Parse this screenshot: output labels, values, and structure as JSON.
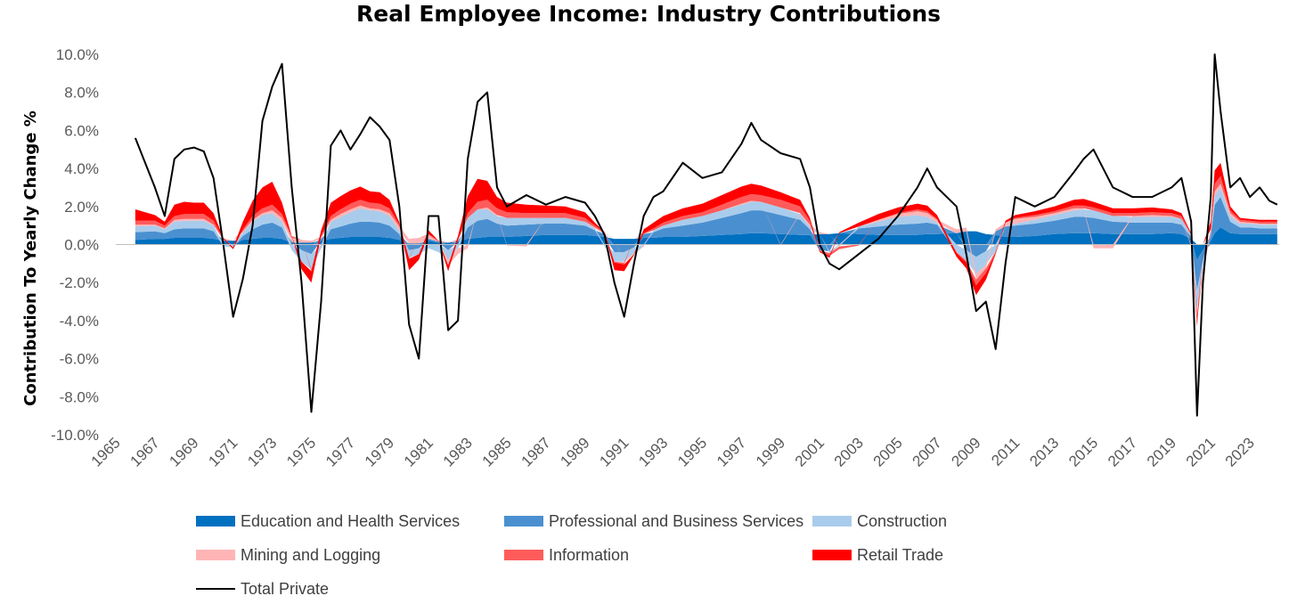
{
  "chart_data": {
    "type": "area",
    "title": "Real Employee Income: Industry Contributions",
    "xlabel": "",
    "ylabel": "Contribution To Yearly Change %",
    "xlim": [
      1965,
      2024.5
    ],
    "ylim": [
      -10,
      10
    ],
    "x_tick_labels": [
      "1965",
      "1967",
      "1969",
      "1971",
      "1973",
      "1975",
      "1977",
      "1979",
      "1981",
      "1983",
      "1985",
      "1987",
      "1989",
      "1991",
      "1993",
      "1995",
      "1997",
      "1999",
      "2001",
      "2003",
      "2005",
      "2007",
      "2009",
      "2011",
      "2013",
      "2015",
      "2017",
      "2019",
      "2021",
      "2023"
    ],
    "y_tick_labels": [
      "10.0%",
      "8.0%",
      "6.0%",
      "4.0%",
      "2.0%",
      "0.0%",
      "-2.0%",
      "-4.0%",
      "-6.0%",
      "-8.0%",
      "-10.0%"
    ],
    "legend_position": "bottom",
    "grid": false,
    "x": [
      1966.0,
      1967.0,
      1967.5,
      1968.0,
      1968.5,
      1969.0,
      1969.5,
      1970.0,
      1970.5,
      1971.0,
      1971.5,
      1972.0,
      1972.5,
      1973.0,
      1973.5,
      1974.0,
      1974.5,
      1975.0,
      1975.5,
      1976.0,
      1976.5,
      1977.0,
      1977.5,
      1978.0,
      1978.5,
      1979.0,
      1979.5,
      1980.0,
      1980.5,
      1981.0,
      1981.5,
      1982.0,
      1982.5,
      1983.0,
      1983.5,
      1984.0,
      1984.5,
      1985.0,
      1986.0,
      1987.0,
      1988.0,
      1989.0,
      1989.5,
      1990.0,
      1990.5,
      1991.0,
      1991.5,
      1992.0,
      1992.5,
      1993.0,
      1994.0,
      1995.0,
      1996.0,
      1997.0,
      1997.5,
      1998.0,
      1999.0,
      2000.0,
      2000.5,
      2001.0,
      2001.5,
      2002.0,
      2003.0,
      2004.0,
      2005.0,
      2006.0,
      2006.5,
      2007.0,
      2008.0,
      2008.5,
      2009.0,
      2009.5,
      2010.0,
      2010.5,
      2011.0,
      2012.0,
      2013.0,
      2014.0,
      2014.5,
      2015.0,
      2016.0,
      2017.0,
      2018.0,
      2019.0,
      2019.5,
      2020.0,
      2020.3,
      2020.6,
      2021.0,
      2021.2,
      2021.5,
      2022.0,
      2022.5,
      2023.0,
      2023.5,
      2024.0,
      2024.4
    ],
    "series": [
      {
        "name": "Education and Health Services",
        "color": "#0070C0",
        "values": [
          0.25,
          0.3,
          0.3,
          0.35,
          0.35,
          0.35,
          0.35,
          0.3,
          0.2,
          0.2,
          0.25,
          0.3,
          0.35,
          0.35,
          0.3,
          0.1,
          0.1,
          0.1,
          0.2,
          0.3,
          0.35,
          0.4,
          0.4,
          0.4,
          0.4,
          0.35,
          0.25,
          0.05,
          0.05,
          0.2,
          0.1,
          0.1,
          0.15,
          0.3,
          0.35,
          0.4,
          0.4,
          0.4,
          0.45,
          0.5,
          0.5,
          0.5,
          0.45,
          0.4,
          0.3,
          0.3,
          0.3,
          0.35,
          0.35,
          0.4,
          0.4,
          0.45,
          0.5,
          0.55,
          0.6,
          0.6,
          0.55,
          0.5,
          0.5,
          0.55,
          0.55,
          0.6,
          0.55,
          0.5,
          0.5,
          0.5,
          0.55,
          0.55,
          0.6,
          0.7,
          0.7,
          0.55,
          0.5,
          0.4,
          0.4,
          0.45,
          0.55,
          0.6,
          0.6,
          0.6,
          0.55,
          0.55,
          0.55,
          0.6,
          0.55,
          0.3,
          -0.8,
          -0.3,
          0.2,
          0.6,
          0.9,
          0.6,
          0.55,
          0.55,
          0.55,
          0.55,
          0.55
        ]
      },
      {
        "name": "Professional and Business Services",
        "color": "#4A90D0",
        "values": [
          0.4,
          0.4,
          0.3,
          0.45,
          0.5,
          0.5,
          0.5,
          0.4,
          0.05,
          -0.05,
          0.2,
          0.5,
          0.7,
          0.8,
          0.6,
          0.05,
          -0.3,
          -0.5,
          0.1,
          0.5,
          0.6,
          0.7,
          0.8,
          0.8,
          0.75,
          0.65,
          0.3,
          -0.3,
          -0.2,
          0.1,
          0.05,
          -0.3,
          0.05,
          0.6,
          0.9,
          0.95,
          0.7,
          0.6,
          0.6,
          0.6,
          0.6,
          0.5,
          0.3,
          0.15,
          -0.4,
          -0.4,
          -0.15,
          0.2,
          0.3,
          0.45,
          0.6,
          0.7,
          0.9,
          1.1,
          1.2,
          1.2,
          1.0,
          0.8,
          0.3,
          -0.3,
          -0.35,
          0.0,
          0.3,
          0.45,
          0.55,
          0.6,
          0.6,
          0.5,
          0.0,
          -0.3,
          -0.65,
          -0.35,
          0.2,
          0.55,
          0.6,
          0.65,
          0.7,
          0.85,
          0.85,
          0.8,
          0.65,
          0.6,
          0.6,
          0.55,
          0.5,
          0.1,
          -1.6,
          -0.5,
          0.3,
          1.5,
          1.6,
          0.6,
          0.35,
          0.35,
          0.3,
          0.3,
          0.3
        ]
      },
      {
        "name": "Construction",
        "color": "#A9CCEC",
        "values": [
          0.3,
          0.3,
          0.2,
          0.4,
          0.4,
          0.4,
          0.4,
          0.3,
          -0.1,
          -0.1,
          0.2,
          0.4,
          0.5,
          0.5,
          0.3,
          -0.3,
          -0.6,
          -0.8,
          -0.2,
          0.4,
          0.5,
          0.6,
          0.7,
          0.6,
          0.6,
          0.5,
          0.2,
          -0.4,
          -0.3,
          -0.2,
          -0.4,
          -0.5,
          -0.2,
          0.5,
          0.6,
          0.5,
          0.4,
          0.4,
          0.35,
          0.3,
          0.3,
          0.2,
          0.1,
          -0.1,
          -0.5,
          -0.5,
          -0.3,
          -0.05,
          0.1,
          0.15,
          0.3,
          0.35,
          0.4,
          0.45,
          0.45,
          0.45,
          0.4,
          0.3,
          0.15,
          0.0,
          -0.1,
          -0.05,
          0.1,
          0.25,
          0.4,
          0.45,
          0.3,
          0.1,
          -0.4,
          -0.55,
          -0.9,
          -0.7,
          -0.35,
          0.0,
          0.1,
          0.2,
          0.3,
          0.35,
          0.4,
          0.4,
          0.3,
          0.3,
          0.3,
          0.3,
          0.3,
          0.1,
          -1.0,
          -0.4,
          0.1,
          0.5,
          0.5,
          0.3,
          0.2,
          0.2,
          0.2,
          0.2,
          0.2
        ]
      },
      {
        "name": "Mining and Logging",
        "color": "#FFB5B5",
        "values": [
          0.1,
          0.05,
          0.05,
          0.1,
          0.1,
          0.1,
          0.1,
          0.05,
          0.0,
          0.0,
          0.05,
          0.1,
          0.1,
          0.15,
          0.2,
          0.2,
          0.15,
          0.1,
          0.1,
          0.1,
          0.15,
          0.15,
          0.15,
          0.1,
          0.1,
          0.15,
          0.2,
          0.25,
          0.3,
          0.2,
          0.0,
          -0.3,
          -0.3,
          -0.2,
          0.0,
          0.1,
          0.05,
          -0.05,
          -0.1,
          0.0,
          0.0,
          0.0,
          0.05,
          0.05,
          0.0,
          -0.05,
          -0.05,
          -0.05,
          0.0,
          0.0,
          0.0,
          0.0,
          0.0,
          0.05,
          0.05,
          0.0,
          -0.05,
          0.05,
          0.1,
          0.1,
          0.0,
          -0.05,
          0.0,
          0.1,
          0.15,
          0.2,
          0.2,
          0.15,
          0.2,
          0.2,
          -0.3,
          -0.2,
          0.1,
          0.2,
          0.25,
          0.15,
          0.1,
          0.1,
          0.05,
          -0.2,
          -0.2,
          0.05,
          0.1,
          0.05,
          0.0,
          -0.1,
          -0.3,
          -0.2,
          0.1,
          0.2,
          0.2,
          0.15,
          0.1,
          0.05,
          0.05,
          0.05,
          0.05
        ]
      },
      {
        "name": "Information",
        "color": "#FF5B5B",
        "values": [
          0.2,
          0.2,
          0.15,
          0.2,
          0.25,
          0.25,
          0.25,
          0.2,
          0.05,
          0.0,
          0.1,
          0.2,
          0.25,
          0.3,
          0.2,
          0.1,
          0.0,
          -0.1,
          0.05,
          0.2,
          0.25,
          0.3,
          0.3,
          0.3,
          0.3,
          0.25,
          0.1,
          -0.05,
          0.0,
          0.05,
          0.05,
          0.0,
          0.05,
          0.25,
          0.4,
          0.4,
          0.35,
          0.3,
          0.25,
          0.25,
          0.25,
          0.2,
          0.1,
          0.05,
          -0.05,
          -0.1,
          0.0,
          0.05,
          0.1,
          0.15,
          0.2,
          0.2,
          0.3,
          0.35,
          0.35,
          0.35,
          0.4,
          0.35,
          0.2,
          -0.05,
          -0.15,
          -0.15,
          -0.05,
          0.0,
          0.05,
          0.1,
          0.1,
          0.05,
          -0.05,
          -0.1,
          -0.3,
          -0.25,
          -0.1,
          0.0,
          0.05,
          0.1,
          0.1,
          0.15,
          0.15,
          0.15,
          0.15,
          0.15,
          0.15,
          0.15,
          0.15,
          0.05,
          -0.3,
          -0.1,
          0.1,
          0.4,
          0.4,
          0.15,
          0.1,
          0.1,
          0.1,
          0.1,
          0.1
        ]
      },
      {
        "name": "Retail Trade",
        "color": "#FF0000",
        "values": [
          0.6,
          0.3,
          0.2,
          0.6,
          0.65,
          0.6,
          0.6,
          0.4,
          0.05,
          -0.1,
          0.4,
          0.8,
          1.1,
          1.2,
          0.6,
          0.0,
          -0.4,
          -0.6,
          0.3,
          0.7,
          0.7,
          0.7,
          0.7,
          0.6,
          0.6,
          0.45,
          0.1,
          -0.6,
          -0.3,
          0.2,
          0.0,
          -0.3,
          0.2,
          0.9,
          1.2,
          1.0,
          0.6,
          0.5,
          0.45,
          0.4,
          0.35,
          0.3,
          0.15,
          0.0,
          -0.4,
          -0.35,
          -0.05,
          0.2,
          0.3,
          0.35,
          0.4,
          0.45,
          0.5,
          0.55,
          0.55,
          0.5,
          0.4,
          0.35,
          0.15,
          -0.05,
          -0.1,
          0.05,
          0.2,
          0.3,
          0.3,
          0.3,
          0.3,
          0.2,
          -0.2,
          -0.3,
          -0.5,
          -0.35,
          -0.05,
          0.1,
          0.15,
          0.2,
          0.25,
          0.3,
          0.35,
          0.3,
          0.25,
          0.25,
          0.25,
          0.2,
          0.15,
          0.05,
          -0.3,
          0.0,
          0.4,
          0.7,
          0.7,
          0.2,
          0.1,
          0.1,
          0.1,
          0.1,
          0.1
        ]
      },
      {
        "name": "Total Private",
        "color": "#000000",
        "type": "line",
        "values": [
          5.6,
          3.0,
          1.5,
          4.5,
          5.0,
          5.1,
          4.9,
          3.5,
          0.0,
          -3.8,
          -1.8,
          1.0,
          6.5,
          8.3,
          9.5,
          3.0,
          -2.0,
          -8.8,
          -3.0,
          5.2,
          6.0,
          5.0,
          5.8,
          6.7,
          6.2,
          5.5,
          2.0,
          -4.2,
          -6.0,
          1.5,
          1.5,
          -4.5,
          -4.0,
          4.5,
          7.5,
          8.0,
          3.0,
          2.0,
          2.6,
          2.1,
          2.5,
          2.2,
          1.5,
          0.5,
          -2.0,
          -3.8,
          -1.0,
          1.5,
          2.5,
          2.8,
          4.3,
          3.5,
          3.8,
          5.3,
          6.4,
          5.5,
          4.8,
          4.5,
          3.0,
          0.0,
          -1.0,
          -1.3,
          -0.5,
          0.3,
          1.5,
          3.0,
          4.0,
          3.0,
          2.0,
          -0.5,
          -3.5,
          -3.0,
          -5.5,
          -1.0,
          2.5,
          2.0,
          2.5,
          3.8,
          4.5,
          5.0,
          3.0,
          2.5,
          2.5,
          3.0,
          3.5,
          1.2,
          -9.0,
          -2.0,
          2.5,
          10.0,
          7.0,
          3.0,
          3.5,
          2.5,
          3.0,
          2.3,
          2.1
        ]
      }
    ]
  }
}
